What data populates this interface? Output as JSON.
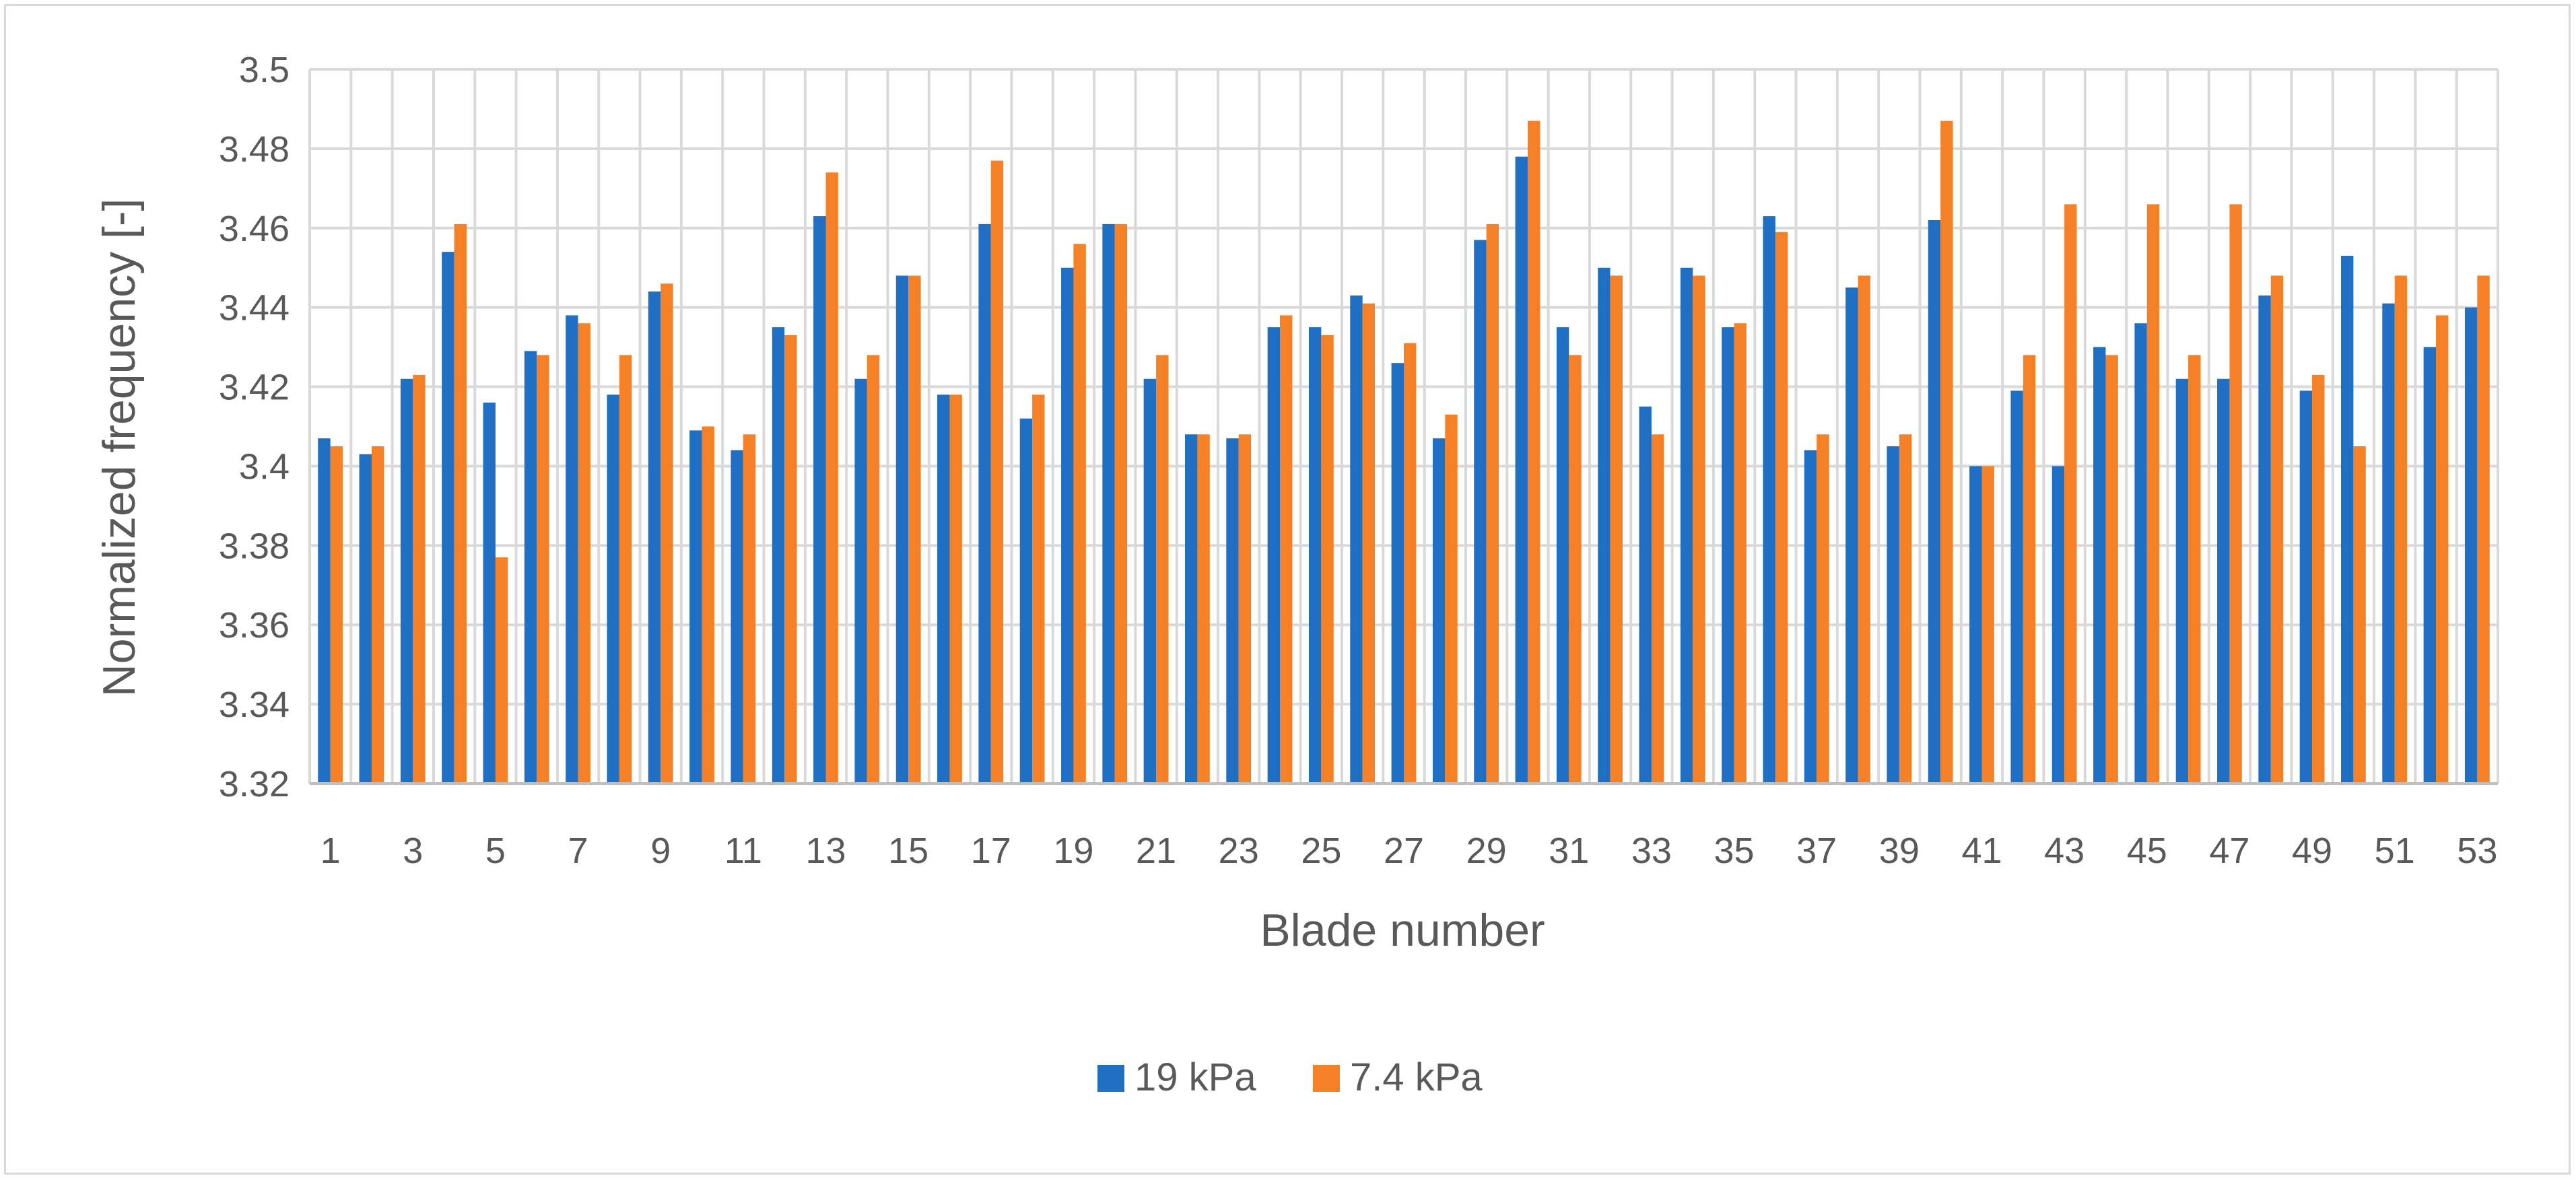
{
  "chart_data": {
    "type": "bar",
    "title": "",
    "xlabel": "Blade number",
    "ylabel": "Normalized frequency [-]",
    "ylim": [
      3.32,
      3.5
    ],
    "ytick_step": 0.02,
    "y_tick_labels": [
      "3.32",
      "3.34",
      "3.36",
      "3.38",
      "3.4",
      "3.42",
      "3.44",
      "3.46",
      "3.48",
      "3.5"
    ],
    "x_tick_labels": [
      "1",
      "3",
      "5",
      "7",
      "9",
      "11",
      "13",
      "15",
      "17",
      "19",
      "21",
      "23",
      "25",
      "27",
      "29",
      "31",
      "33",
      "35",
      "37",
      "39",
      "41",
      "43",
      "45",
      "47",
      "49",
      "51",
      "53"
    ],
    "grid": true,
    "legend_position": "bottom",
    "categories": [
      1,
      2,
      3,
      4,
      5,
      6,
      7,
      8,
      9,
      10,
      11,
      12,
      13,
      14,
      15,
      16,
      17,
      18,
      19,
      20,
      21,
      22,
      23,
      24,
      25,
      26,
      27,
      28,
      29,
      30,
      31,
      32,
      33,
      34,
      35,
      36,
      37,
      38,
      39,
      40,
      41,
      42,
      43,
      44,
      45,
      46,
      47,
      48,
      49,
      50,
      51,
      52,
      53
    ],
    "series": [
      {
        "name": "19 kPa",
        "color": "#1f6fc5",
        "values": [
          3.407,
          3.403,
          3.422,
          3.454,
          3.416,
          3.429,
          3.438,
          3.418,
          3.444,
          3.409,
          3.404,
          3.435,
          3.463,
          3.422,
          3.448,
          3.418,
          3.461,
          3.412,
          3.45,
          3.461,
          3.422,
          3.408,
          3.407,
          3.435,
          3.435,
          3.443,
          3.426,
          3.407,
          3.457,
          3.478,
          3.435,
          3.45,
          3.415,
          3.45,
          3.435,
          3.463,
          3.404,
          3.445,
          3.405,
          3.462,
          3.4,
          3.419,
          3.4,
          3.43,
          3.436,
          3.422,
          3.422,
          3.443,
          3.419,
          3.453,
          3.441,
          3.43,
          3.44
        ]
      },
      {
        "name": "7.4 kPa",
        "color": "#f58025",
        "values": [
          3.405,
          3.405,
          3.423,
          3.461,
          3.377,
          3.428,
          3.436,
          3.428,
          3.446,
          3.41,
          3.408,
          3.433,
          3.474,
          3.428,
          3.448,
          3.418,
          3.477,
          3.418,
          3.456,
          3.461,
          3.428,
          3.408,
          3.408,
          3.438,
          3.433,
          3.441,
          3.431,
          3.413,
          3.461,
          3.487,
          3.428,
          3.448,
          3.408,
          3.448,
          3.436,
          3.459,
          3.408,
          3.448,
          3.408,
          3.487,
          3.4,
          3.428,
          3.466,
          3.428,
          3.466,
          3.428,
          3.466,
          3.448,
          3.423,
          3.405,
          3.448,
          3.438,
          3.448
        ]
      }
    ]
  }
}
